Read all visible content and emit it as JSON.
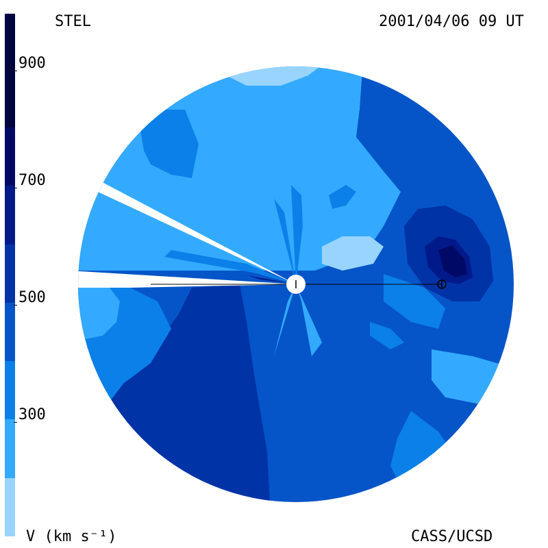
{
  "header": {
    "observatory": "STEL",
    "timestamp": "2001/04/06 09 UT"
  },
  "footer": {
    "units": "V (km s⁻¹)",
    "credit": "CASS/UCSD"
  },
  "colorbar": {
    "ticks": [
      "900",
      "700",
      "500",
      "300"
    ],
    "levels": [
      {
        "min": 200,
        "max": 300,
        "color": "#99d4ff"
      },
      {
        "min": 300,
        "max": 400,
        "color": "#33aaff"
      },
      {
        "min": 400,
        "max": 500,
        "color": "#0a80e8"
      },
      {
        "min": 500,
        "max": 600,
        "color": "#0555c8"
      },
      {
        "min": 600,
        "max": 700,
        "color": "#0033a6"
      },
      {
        "min": 700,
        "max": 800,
        "color": "#001a8a"
      },
      {
        "min": 800,
        "max": 900,
        "color": "#000a66"
      },
      {
        "min": 900,
        "max": 1000,
        "color": "#00043f"
      }
    ]
  },
  "markers": {
    "sun": "sun-symbol",
    "earth": "earth-symbol"
  }
}
